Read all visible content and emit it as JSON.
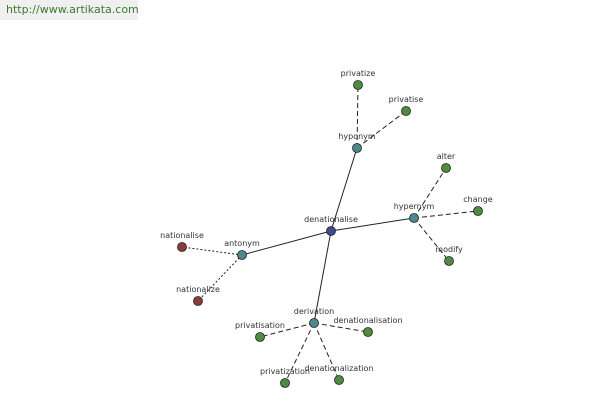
{
  "header": {
    "url": "http://www.artikata.com"
  },
  "nodes": [
    {
      "label": "denationalise"
    },
    {
      "label": "hyponym"
    },
    {
      "label": "privatize"
    },
    {
      "label": "privatise"
    },
    {
      "label": "hypernym"
    },
    {
      "label": "alter"
    },
    {
      "label": "change"
    },
    {
      "label": "modify"
    },
    {
      "label": "antonym"
    },
    {
      "label": "nationalise"
    },
    {
      "label": "nationalize"
    },
    {
      "label": "derivation"
    },
    {
      "label": "privatisation"
    },
    {
      "label": "denationalisation"
    },
    {
      "label": "privatization"
    },
    {
      "label": "denationalization"
    }
  ]
}
